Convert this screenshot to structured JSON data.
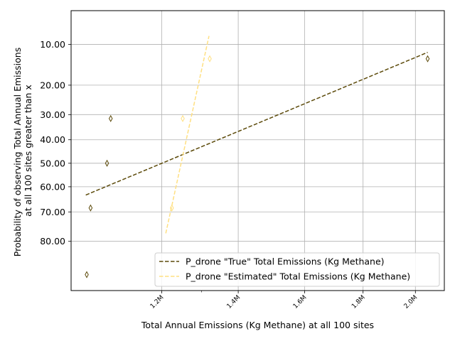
{
  "chart_data": {
    "type": "scatter",
    "xlabel": "Total Annual Emissions (Kg Methane) at all 100 sites",
    "ylabel_lines": [
      "Probability of observing Total Annual Emissions",
      "at all 100 sites greater than x"
    ],
    "x_scale": "log",
    "y_scale": "normal-probability",
    "x_ticks": [
      {
        "value": 1200000,
        "label": "1.2M"
      },
      {
        "value": 1400000,
        "label": "1.4M"
      },
      {
        "value": 1600000,
        "label": "1.6M"
      },
      {
        "value": 1800000,
        "label": "1.8M"
      },
      {
        "value": 2000000,
        "label": "2.0M"
      }
    ],
    "x_minor_ticks": [
      1300000
    ],
    "y_ticks": [
      {
        "value": 10,
        "label": "10.00"
      },
      {
        "value": 20,
        "label": "20.00"
      },
      {
        "value": 30,
        "label": "30.00"
      },
      {
        "value": 40,
        "label": "40.00"
      },
      {
        "value": 50,
        "label": "50.00"
      },
      {
        "value": 60,
        "label": "60.00"
      },
      {
        "value": 70,
        "label": "70.00"
      },
      {
        "value": 80,
        "label": "80.00"
      }
    ],
    "xlim": [
      1000000,
      2120000
    ],
    "ylim": [
      5,
      91.5
    ],
    "grid": true,
    "legend_position": "lower right",
    "series": [
      {
        "name": "P_drone \"True\" Total Emissions (Kg Methane)",
        "color": "#5c4a0a",
        "points": [
          {
            "x": 1032000,
            "y": 88.5
          },
          {
            "x": 1040000,
            "y": 68.5
          },
          {
            "x": 1075000,
            "y": 50.0
          },
          {
            "x": 1083000,
            "y": 31.5
          },
          {
            "x": 2050000,
            "y": 13.0
          }
        ],
        "fit": [
          {
            "x": 1030000,
            "y": 63.4
          },
          {
            "x": 2050000,
            "y": 11.6
          }
        ]
      },
      {
        "name": "P_drone \"Estimated\" Total Emissions (Kg Methane)",
        "color": "#ffe082",
        "points": [
          {
            "x": 1225000,
            "y": 68.5
          },
          {
            "x": 1252000,
            "y": 31.5
          },
          {
            "x": 1322000,
            "y": 13.0
          }
        ],
        "fit": [
          {
            "x": 1210000,
            "y": 77.5
          },
          {
            "x": 1320000,
            "y": 8.5
          }
        ]
      }
    ]
  }
}
